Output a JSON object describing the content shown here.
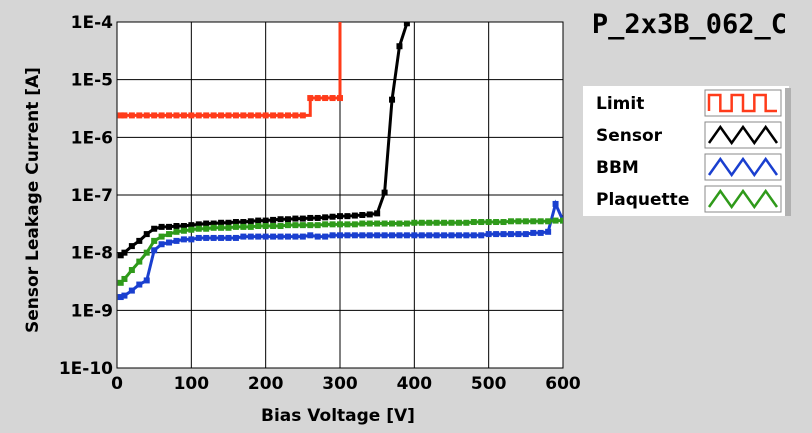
{
  "window": {
    "title": "P_2x3B_062_C"
  },
  "chart_data": {
    "type": "line",
    "title": "P_2x3B_062_C",
    "xlabel": "Bias Voltage [V]",
    "ylabel": "Sensor Leakage Current [A]",
    "xlim": [
      0,
      600
    ],
    "ylim": [
      1e-10,
      0.0001
    ],
    "yscale": "log",
    "grid": true,
    "legend_position": "right",
    "x_ticks": [
      0,
      100,
      200,
      300,
      400,
      500,
      600
    ],
    "x_tick_labels": [
      "0",
      "100",
      "200",
      "300",
      "400",
      "500",
      "600"
    ],
    "y_ticks": [
      1e-10,
      1e-09,
      1e-08,
      1e-07,
      1e-06,
      1e-05,
      0.0001
    ],
    "y_tick_labels": [
      "1E-10",
      "1E-9",
      "1E-8",
      "1E-7",
      "1E-6",
      "1E-5",
      "1E-4"
    ],
    "series": [
      {
        "name": "Limit",
        "color": "#ff3b1a",
        "x": [
          5,
          10,
          20,
          30,
          40,
          50,
          60,
          70,
          80,
          90,
          100,
          110,
          120,
          130,
          140,
          150,
          160,
          170,
          180,
          190,
          200,
          210,
          220,
          230,
          240,
          250,
          260,
          270,
          280,
          290,
          300,
          300
        ],
        "y": [
          2.4e-06,
          2.4e-06,
          2.4e-06,
          2.4e-06,
          2.4e-06,
          2.4e-06,
          2.4e-06,
          2.4e-06,
          2.4e-06,
          2.4e-06,
          2.4e-06,
          2.4e-06,
          2.4e-06,
          2.4e-06,
          2.4e-06,
          2.4e-06,
          2.4e-06,
          2.4e-06,
          2.4e-06,
          2.4e-06,
          2.4e-06,
          2.4e-06,
          2.4e-06,
          2.4e-06,
          2.4e-06,
          2.4e-06,
          4.8e-06,
          4.8e-06,
          4.8e-06,
          4.8e-06,
          4.8e-06,
          0.0001
        ],
        "step": true,
        "step_at": 250
      },
      {
        "name": "Sensor",
        "color": "#000000",
        "x": [
          5,
          10,
          20,
          30,
          40,
          50,
          60,
          70,
          80,
          90,
          100,
          110,
          120,
          130,
          140,
          150,
          160,
          170,
          180,
          190,
          200,
          210,
          220,
          230,
          240,
          250,
          260,
          270,
          280,
          290,
          300,
          310,
          320,
          330,
          340,
          350,
          360,
          370,
          380,
          390
        ],
        "y": [
          9e-09,
          1e-08,
          1.3e-08,
          1.6e-08,
          2.1e-08,
          2.6e-08,
          2.8e-08,
          2.8e-08,
          2.9e-08,
          2.9e-08,
          3e-08,
          3.1e-08,
          3.2e-08,
          3.2e-08,
          3.3e-08,
          3.3e-08,
          3.4e-08,
          3.4e-08,
          3.5e-08,
          3.6e-08,
          3.6e-08,
          3.7e-08,
          3.8e-08,
          3.8e-08,
          3.9e-08,
          3.9e-08,
          4e-08,
          4e-08,
          4.1e-08,
          4.2e-08,
          4.3e-08,
          4.3e-08,
          4.4e-08,
          4.5e-08,
          4.6e-08,
          4.8e-08,
          1.1e-07,
          4.5e-06,
          3.8e-05,
          9.5e-05
        ]
      },
      {
        "name": "BBM",
        "color": "#1a3fcf",
        "x": [
          5,
          10,
          20,
          30,
          40,
          50,
          60,
          70,
          80,
          90,
          100,
          110,
          120,
          130,
          140,
          150,
          160,
          170,
          180,
          190,
          200,
          210,
          220,
          230,
          240,
          250,
          260,
          270,
          280,
          290,
          300,
          310,
          320,
          330,
          340,
          350,
          360,
          370,
          380,
          390,
          400,
          410,
          420,
          430,
          440,
          450,
          460,
          470,
          480,
          490,
          500,
          510,
          520,
          530,
          540,
          550,
          560,
          570,
          580,
          590,
          600
        ],
        "y": [
          1.7e-09,
          1.8e-09,
          2.2e-09,
          2.8e-09,
          3.3e-09,
          1.1e-08,
          1.4e-08,
          1.5e-08,
          1.6e-08,
          1.7e-08,
          1.7e-08,
          1.8e-08,
          1.8e-08,
          1.8e-08,
          1.8e-08,
          1.8e-08,
          1.8e-08,
          1.9e-08,
          1.9e-08,
          1.9e-08,
          1.9e-08,
          1.9e-08,
          1.9e-08,
          1.9e-08,
          1.9e-08,
          1.9e-08,
          2e-08,
          1.9e-08,
          1.9e-08,
          2e-08,
          2e-08,
          2e-08,
          2e-08,
          2e-08,
          2e-08,
          2e-08,
          2e-08,
          2e-08,
          2e-08,
          2e-08,
          2e-08,
          2e-08,
          2e-08,
          2e-08,
          2e-08,
          2e-08,
          2e-08,
          2e-08,
          2e-08,
          2e-08,
          2.1e-08,
          2.1e-08,
          2.1e-08,
          2.1e-08,
          2.1e-08,
          2.1e-08,
          2.2e-08,
          2.2e-08,
          2.3e-08,
          7e-08,
          3.6e-08
        ]
      },
      {
        "name": "Plaquette",
        "color": "#2f9a1a",
        "x": [
          5,
          10,
          20,
          30,
          40,
          50,
          60,
          70,
          80,
          90,
          100,
          110,
          120,
          130,
          140,
          150,
          160,
          170,
          180,
          190,
          200,
          210,
          220,
          230,
          240,
          250,
          260,
          270,
          280,
          290,
          300,
          310,
          320,
          330,
          340,
          350,
          360,
          370,
          380,
          390,
          400,
          410,
          420,
          430,
          440,
          450,
          460,
          470,
          480,
          490,
          500,
          510,
          520,
          530,
          540,
          550,
          560,
          570,
          580,
          590,
          600
        ],
        "y": [
          3e-09,
          3.5e-09,
          5e-09,
          7e-09,
          1e-08,
          1.6e-08,
          1.9e-08,
          2.1e-08,
          2.3e-08,
          2.4e-08,
          2.5e-08,
          2.6e-08,
          2.6e-08,
          2.7e-08,
          2.7e-08,
          2.7e-08,
          2.8e-08,
          2.8e-08,
          2.8e-08,
          2.9e-08,
          2.9e-08,
          2.9e-08,
          2.9e-08,
          3e-08,
          3e-08,
          3e-08,
          3e-08,
          3e-08,
          3.1e-08,
          3.1e-08,
          3.1e-08,
          3.1e-08,
          3.1e-08,
          3.2e-08,
          3.2e-08,
          3.2e-08,
          3.2e-08,
          3.2e-08,
          3.2e-08,
          3.2e-08,
          3.3e-08,
          3.3e-08,
          3.3e-08,
          3.3e-08,
          3.3e-08,
          3.3e-08,
          3.3e-08,
          3.3e-08,
          3.4e-08,
          3.4e-08,
          3.4e-08,
          3.4e-08,
          3.4e-08,
          3.5e-08,
          3.5e-08,
          3.5e-08,
          3.5e-08,
          3.5e-08,
          3.5e-08,
          3.6e-08,
          3.6e-08
        ]
      }
    ]
  },
  "legend": {
    "items": [
      {
        "label": "Limit",
        "color": "#ff3b1a",
        "icon": "square-wave-icon"
      },
      {
        "label": "Sensor",
        "color": "#000000",
        "icon": "triangle-wave-icon"
      },
      {
        "label": "BBM",
        "color": "#1a3fcf",
        "icon": "triangle-wave-icon"
      },
      {
        "label": "Plaquette",
        "color": "#2f9a1a",
        "icon": "triangle-wave-icon"
      }
    ]
  }
}
